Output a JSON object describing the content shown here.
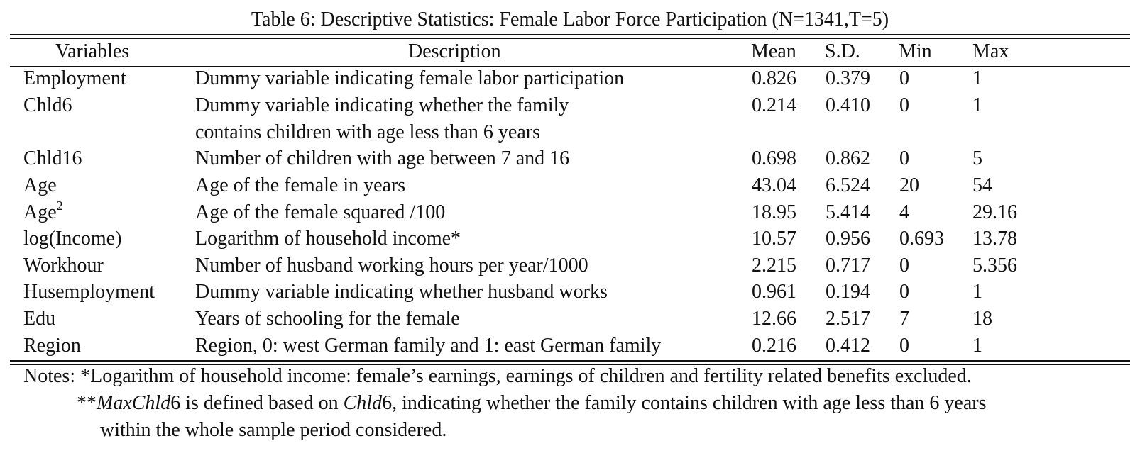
{
  "caption": "Table 6: Descriptive Statistics: Female Labor Force Participation (N=1341,T=5)",
  "headers": {
    "variables": "Variables",
    "description": "Description",
    "mean": "Mean",
    "sd": "S.D.",
    "min": "Min",
    "max": "Max"
  },
  "rows": [
    {
      "variable": "Employment",
      "description": "Dummy variable indicating female labor participation",
      "mean": "0.826",
      "sd": "0.379",
      "min": "0",
      "max": "1"
    },
    {
      "variable": "Chld6",
      "description": "Dummy variable indicating whether the family",
      "description_2": "contains children with age less than 6 years",
      "mean": "0.214",
      "sd": "0.410",
      "min": "0",
      "max": "1"
    },
    {
      "variable": "Chld16",
      "description": "Number of children with age between 7 and 16",
      "mean": "0.698",
      "sd": "0.862",
      "min": "0",
      "max": "5"
    },
    {
      "variable": "Age",
      "description": "Age of the female in years",
      "mean": "43.04",
      "sd": "6.524",
      "min": "20",
      "max": "54"
    },
    {
      "variable": "Age",
      "variable_sup": "2",
      "description": "Age of the female squared /100",
      "mean": "18.95",
      "sd": "5.414",
      "min": "4",
      "max": "29.16"
    },
    {
      "variable": "log(Income)",
      "description": "Logarithm of household income*",
      "mean": "10.57",
      "sd": "0.956",
      "min": "0.693",
      "max": "13.78"
    },
    {
      "variable": "Workhour",
      "description": "Number of husband working hours per year/1000",
      "mean": "2.215",
      "sd": "0.717",
      "min": "0",
      "max": "5.356"
    },
    {
      "variable": "Husemployment",
      "description": "Dummy variable indicating whether husband works",
      "mean": "0.961",
      "sd": "0.194",
      "min": "0",
      "max": "1"
    },
    {
      "variable": "Edu",
      "description": "Years of schooling for the female",
      "mean": "12.66",
      "sd": "2.517",
      "min": "7",
      "max": "18"
    },
    {
      "variable": "Region",
      "description": "Region, 0: west German family and 1: east German family",
      "mean": "0.216",
      "sd": "0.412",
      "min": "0",
      "max": "1"
    }
  ],
  "notes": {
    "line1": "Notes: *Logarithm of household income: female’s earnings, earnings of children and fertility related benefits excluded.",
    "line2_prefix": "**",
    "line2_italic_1": "MaxChld",
    "line2_mid_1": "6 is defined based on ",
    "line2_italic_2": "Chld",
    "line2_rest": "6, indicating whether the family contains children with age less than 6 years",
    "line3": "within the whole sample period considered."
  }
}
